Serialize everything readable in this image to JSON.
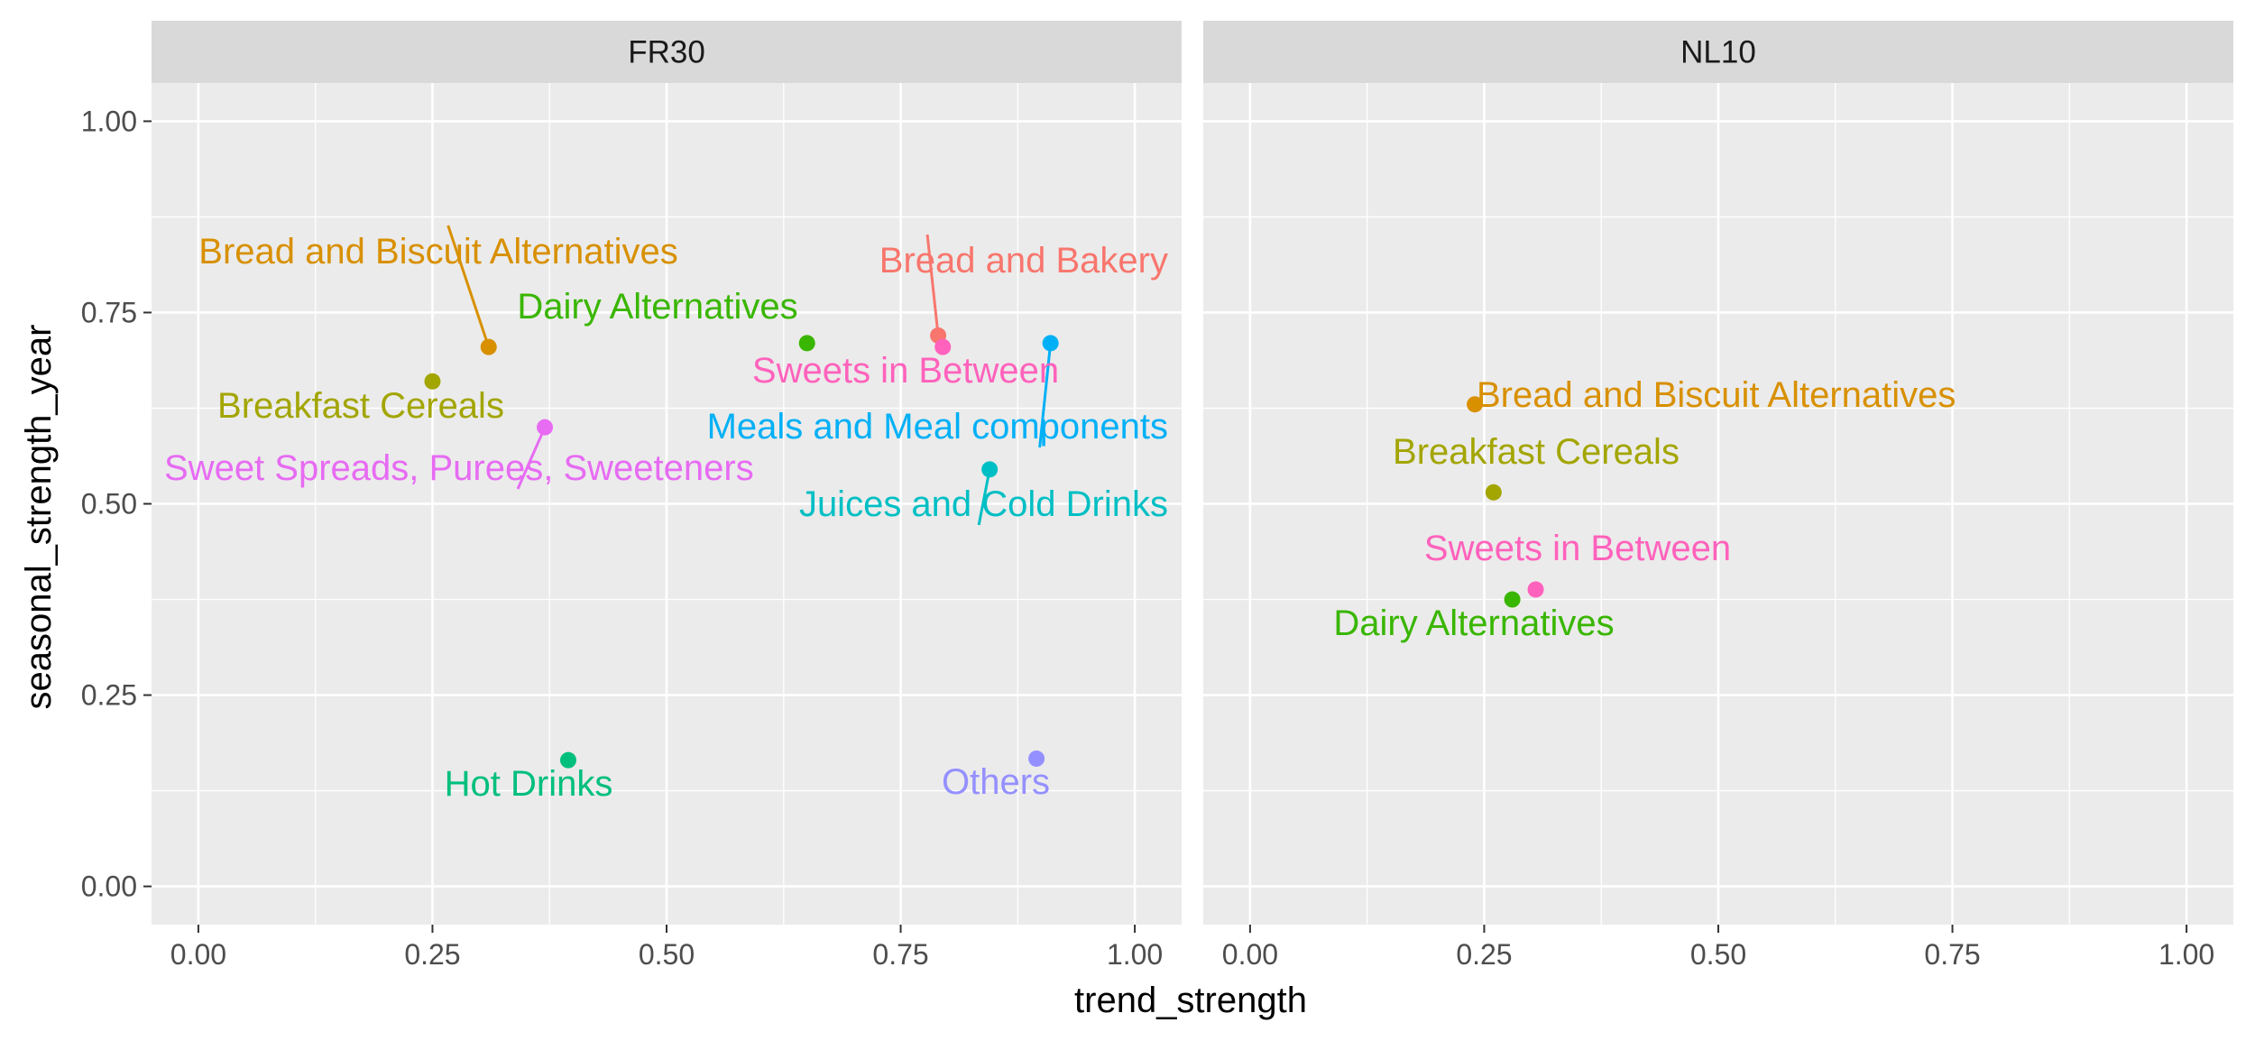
{
  "chart_data": {
    "type": "scatter",
    "xlabel": "trend_strength",
    "ylabel": "seasonal_strength_year",
    "xlim": [
      -0.05,
      1.05
    ],
    "ylim": [
      -0.05,
      1.05
    ],
    "x_ticks": [
      "0.00",
      "0.25",
      "0.50",
      "0.75",
      "1.00"
    ],
    "y_ticks": [
      "0.00",
      "0.25",
      "0.50",
      "0.75",
      "1.00"
    ],
    "grid": true,
    "legend": "none",
    "colors": {
      "Bread and Bakery": "#F8766D",
      "Bread and Biscuit Alternatives": "#D89000",
      "Breakfast Cereals": "#A3A500",
      "Dairy Alternatives": "#39B600",
      "Hot Drinks": "#00BF7D",
      "Juices and Cold Drinks": "#00BFC4",
      "Meals and Meal components": "#00B0F6",
      "Others": "#9590FF",
      "Sweet Spreads, Purees, Sweeteners": "#E76BF3",
      "Sweets in Between": "#FF62BC"
    },
    "panels": [
      {
        "strip": "FR30",
        "points": [
          {
            "label": "Bread and Bakery",
            "x": 0.79,
            "y": 0.72
          },
          {
            "label": "Bread and Biscuit Alternatives",
            "x": 0.31,
            "y": 0.705
          },
          {
            "label": "Breakfast Cereals",
            "x": 0.25,
            "y": 0.66
          },
          {
            "label": "Dairy Alternatives",
            "x": 0.65,
            "y": 0.71
          },
          {
            "label": "Hot Drinks",
            "x": 0.395,
            "y": 0.165
          },
          {
            "label": "Juices and Cold Drinks",
            "x": 0.845,
            "y": 0.545
          },
          {
            "label": "Meals and Meal components",
            "x": 0.91,
            "y": 0.71
          },
          {
            "label": "Others",
            "x": 0.895,
            "y": 0.167
          },
          {
            "label": "Sweet Spreads, Purees, Sweeteners",
            "x": 0.37,
            "y": 0.6
          },
          {
            "label": "Sweets in Between",
            "x": 0.795,
            "y": 0.705
          }
        ]
      },
      {
        "strip": "NL10",
        "points": [
          {
            "label": "Bread and Biscuit Alternatives",
            "x": 0.24,
            "y": 0.63
          },
          {
            "label": "Breakfast Cereals",
            "x": 0.26,
            "y": 0.515
          },
          {
            "label": "Dairy Alternatives",
            "x": 0.28,
            "y": 0.375
          },
          {
            "label": "Sweets in Between",
            "x": 0.305,
            "y": 0.388
          }
        ]
      }
    ]
  }
}
